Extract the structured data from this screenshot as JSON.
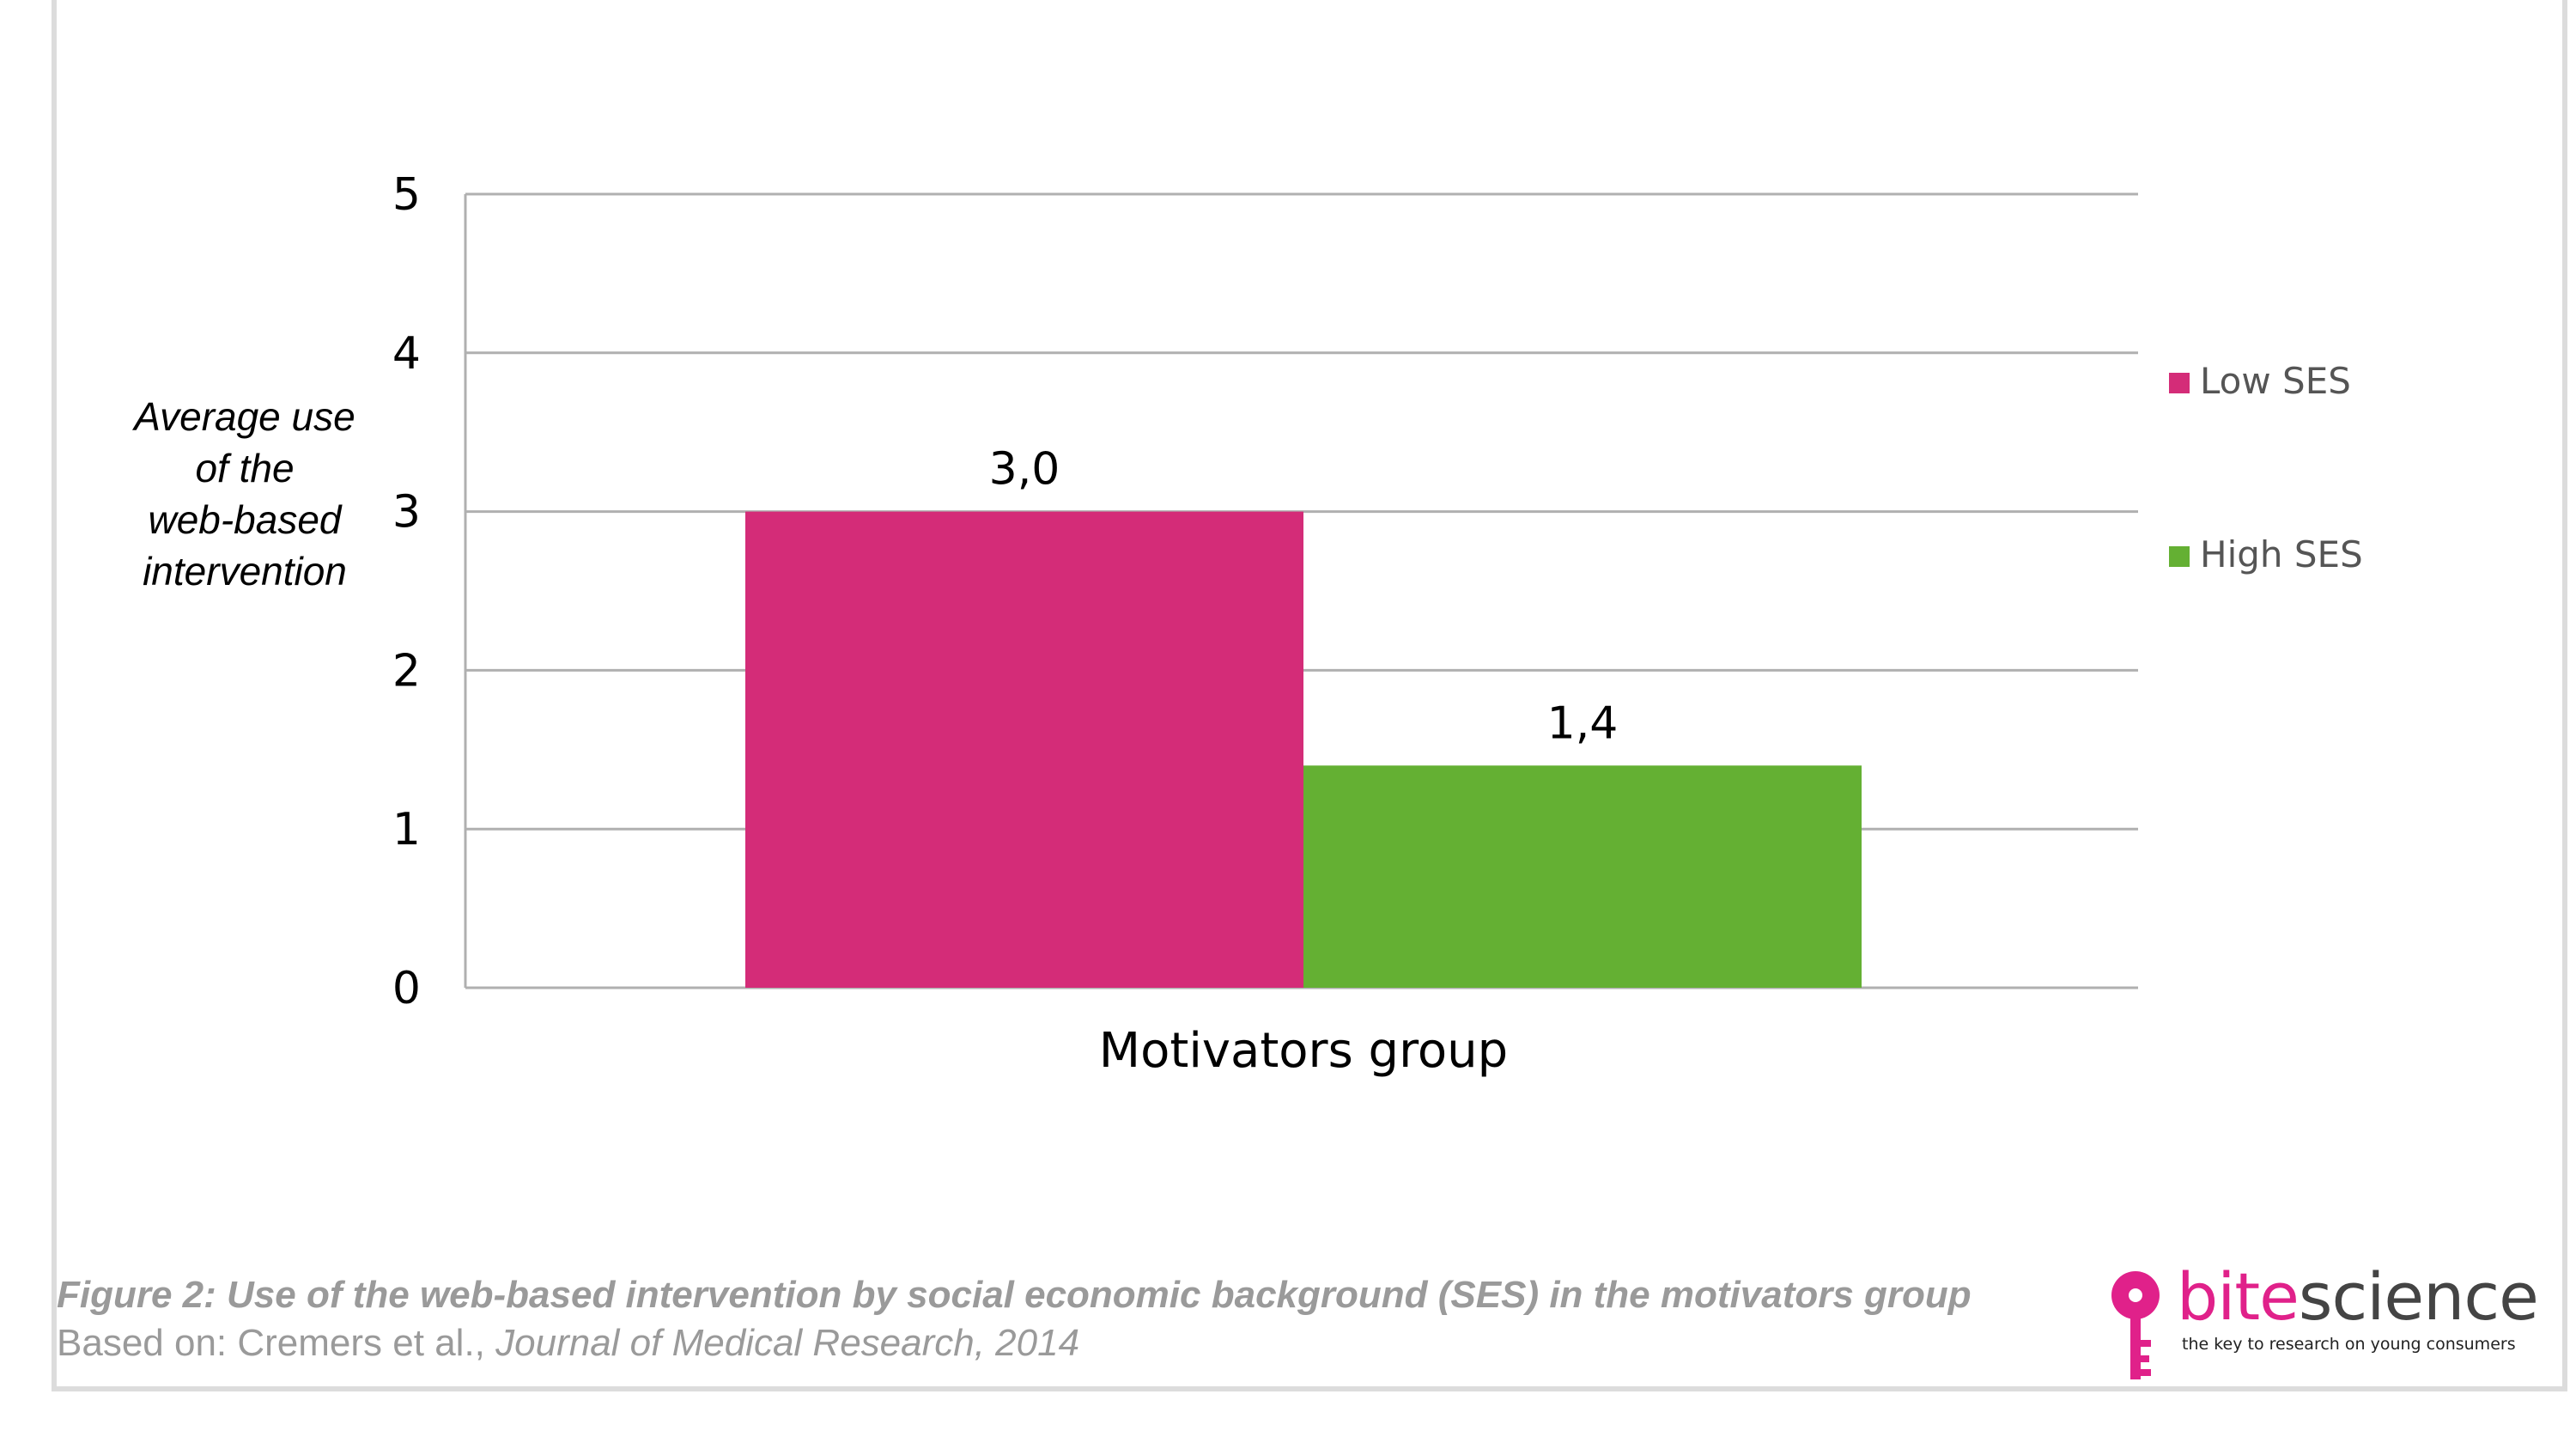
{
  "chart_data": {
    "type": "bar",
    "categories": [
      "Motivators group"
    ],
    "series": [
      {
        "name": "Low SES",
        "values": [
          3.0
        ],
        "label": "3,0",
        "color": "#d42c78"
      },
      {
        "name": "High SES",
        "values": [
          1.4
        ],
        "label": "1,4",
        "color": "#64b033"
      }
    ],
    "ylabel": [
      "Average use",
      "of the",
      "web-based",
      "intervention"
    ],
    "xlabel": "",
    "ylim": [
      0,
      5
    ],
    "yticks": [
      "0",
      "1",
      "2",
      "3",
      "4",
      "5"
    ],
    "grid": true,
    "grid_color": "#b0b0b0",
    "legend_position": "right"
  },
  "caption": {
    "title": "Figure 2: Use of the web-based intervention by social economic background (SES) in the motivators group",
    "source_prefix": "Based on: Cremers et al., ",
    "source_journal": "Journal of Medical Research, 2014"
  },
  "logo": {
    "brand_part1": "bite",
    "brand_part2": "science",
    "tagline": "the key to research on young consumers",
    "brand_color": "#e0218a",
    "icon": "key-icon"
  }
}
